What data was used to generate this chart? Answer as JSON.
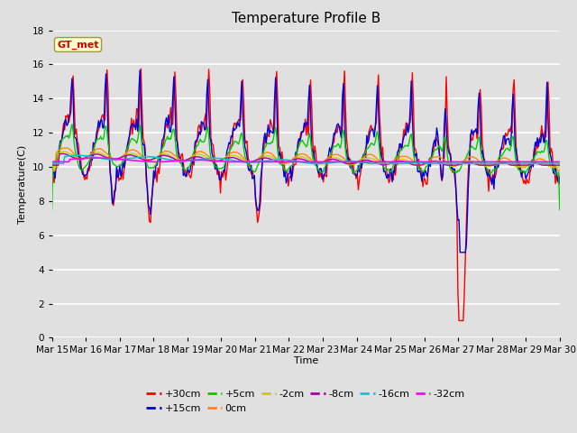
{
  "title": "Temperature Profile B",
  "xlabel": "Time",
  "ylabel": "Temperature(C)",
  "ylim": [
    0,
    18
  ],
  "yticks": [
    0,
    2,
    4,
    6,
    8,
    10,
    12,
    14,
    16,
    18
  ],
  "annotation": "GT_met",
  "series": [
    {
      "label": "+30cm",
      "color": "#FF0000"
    },
    {
      "label": "+15cm",
      "color": "#0000DD"
    },
    {
      "label": "+5cm",
      "color": "#00CC00"
    },
    {
      "label": "0cm",
      "color": "#FF8800"
    },
    {
      "label": "-2cm",
      "color": "#CCCC00"
    },
    {
      "label": "-8cm",
      "color": "#AA00AA"
    },
    {
      "label": "-16cm",
      "color": "#00CCCC"
    },
    {
      "label": "-32cm",
      "color": "#FF00FF"
    }
  ],
  "xtick_labels": [
    "Mar 15",
    "Mar 16",
    "Mar 17",
    "Mar 18",
    "Mar 19",
    "Mar 20",
    "Mar 21",
    "Mar 22",
    "Mar 23",
    "Mar 24",
    "Mar 25",
    "Mar 26",
    "Mar 27",
    "Mar 28",
    "Mar 29",
    "Mar 30"
  ],
  "background_color": "#E0E0E0",
  "plot_bg_color": "#E0E0E0",
  "grid_color": "#FFFFFF",
  "title_fontsize": 11,
  "label_fontsize": 8,
  "tick_fontsize": 7.5
}
